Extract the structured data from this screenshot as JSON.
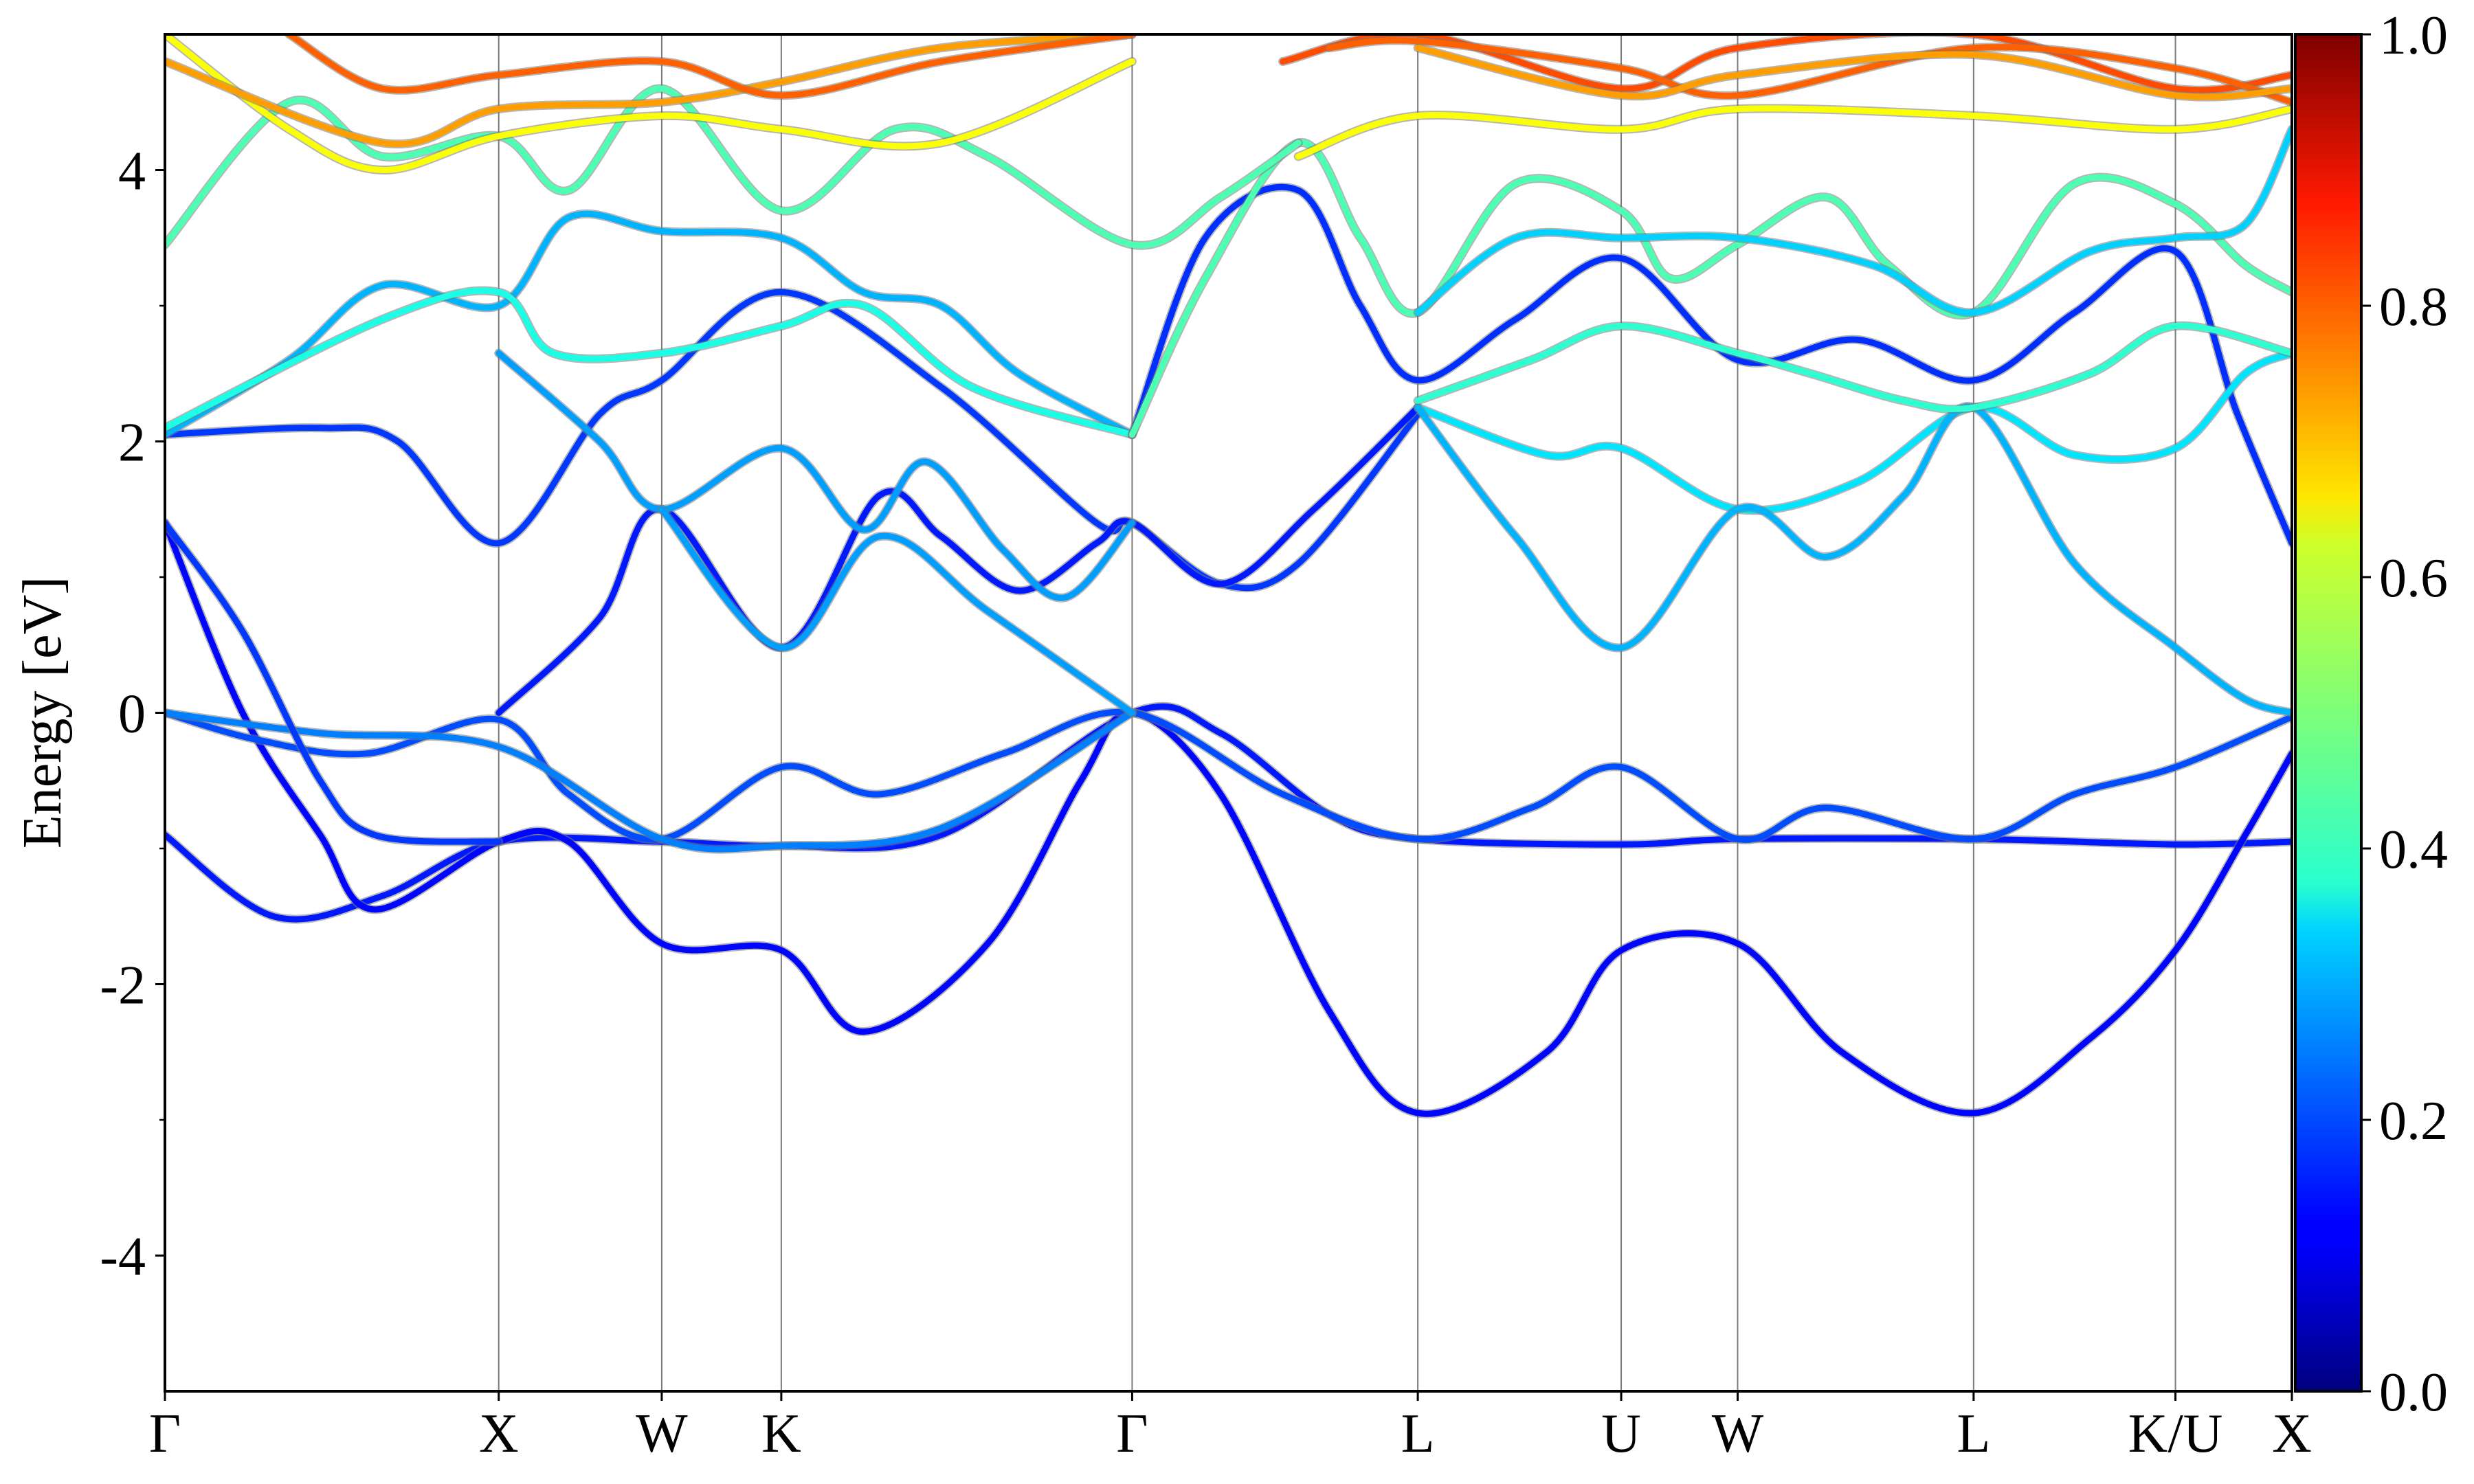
{
  "chart_data": {
    "type": "line",
    "title": "",
    "xlabel": "",
    "ylabel": "Energy [eV]",
    "ylim": [
      -5,
      5
    ],
    "yticks": [
      -4,
      -2,
      0,
      2,
      4
    ],
    "yticks_minor": [
      -3,
      -1,
      1,
      3
    ],
    "x_range": [
      0,
      13.7
    ],
    "kpath": [
      {
        "label": "Γ",
        "x": 0
      },
      {
        "label": "X",
        "x": 2.15
      },
      {
        "label": "W",
        "x": 3.2
      },
      {
        "label": "K",
        "x": 3.97
      },
      {
        "label": "Γ",
        "x": 6.23
      },
      {
        "label": "L",
        "x": 8.07
      },
      {
        "label": "U",
        "x": 9.38
      },
      {
        "label": "W",
        "x": 10.13
      },
      {
        "label": "L",
        "x": 11.65
      },
      {
        "label": "K/U",
        "x": 12.95
      },
      {
        "label": "X",
        "x": 13.7
      }
    ],
    "colorbar": {
      "colormap": "jet",
      "range": [
        0.0,
        1.0
      ],
      "ticks": [
        "0.0",
        "0.2",
        "0.4",
        "0.6",
        "0.8",
        "1.0"
      ]
    },
    "series": [
      {
        "c": 0.15,
        "points": [
          [
            0,
            -0.9
          ],
          [
            0.7,
            -1.5
          ],
          [
            1.4,
            -1.35
          ],
          [
            2.15,
            -0.95
          ],
          [
            3.2,
            -0.95
          ],
          [
            3.97,
            -0.98
          ],
          [
            5.0,
            -0.9
          ],
          [
            6.23,
            0.0
          ],
          [
            6.8,
            -0.15
          ],
          [
            7.5,
            -0.75
          ],
          [
            8.07,
            -0.93
          ],
          [
            9.38,
            -0.97
          ],
          [
            10.13,
            -0.93
          ],
          [
            11.65,
            -0.93
          ],
          [
            12.95,
            -0.97
          ],
          [
            13.7,
            -0.95
          ]
        ]
      },
      {
        "c": 0.13,
        "points": [
          [
            0,
            1.4
          ],
          [
            0.5,
            0.0
          ],
          [
            1.0,
            -0.9
          ],
          [
            1.35,
            -1.45
          ],
          [
            2.15,
            -0.95
          ],
          [
            2.6,
            -0.95
          ],
          [
            3.2,
            -1.7
          ],
          [
            3.97,
            -1.75
          ],
          [
            4.5,
            -2.35
          ],
          [
            5.3,
            -1.7
          ],
          [
            5.9,
            -0.5
          ],
          [
            6.23,
            0.0
          ],
          [
            6.8,
            -0.6
          ],
          [
            7.5,
            -2.2
          ],
          [
            8.07,
            -2.95
          ],
          [
            8.9,
            -2.5
          ],
          [
            9.38,
            -1.75
          ],
          [
            10.13,
            -1.7
          ],
          [
            10.8,
            -2.5
          ],
          [
            11.65,
            -2.95
          ],
          [
            12.4,
            -2.4
          ],
          [
            12.95,
            -1.75
          ],
          [
            13.4,
            -0.9
          ],
          [
            13.7,
            -0.3
          ]
        ]
      },
      {
        "c": 0.2,
        "points": [
          [
            0,
            0.0
          ],
          [
            0.6,
            -0.2
          ],
          [
            1.3,
            -0.3
          ],
          [
            2.15,
            -0.05
          ],
          [
            2.6,
            -0.6
          ],
          [
            3.2,
            -0.93
          ],
          [
            3.97,
            -0.4
          ],
          [
            4.6,
            -0.6
          ],
          [
            5.4,
            -0.3
          ],
          [
            6.23,
            0.0
          ],
          [
            7.2,
            -0.6
          ],
          [
            8.07,
            -0.93
          ],
          [
            8.8,
            -0.7
          ],
          [
            9.38,
            -0.4
          ],
          [
            10.13,
            -0.93
          ],
          [
            10.7,
            -0.7
          ],
          [
            11.65,
            -0.93
          ],
          [
            12.3,
            -0.6
          ],
          [
            12.95,
            -0.4
          ],
          [
            13.7,
            -0.03
          ]
        ]
      },
      {
        "c": 0.25,
        "points": [
          [
            0,
            0.0
          ],
          [
            1.0,
            -0.15
          ],
          [
            2.15,
            -0.25
          ],
          [
            3.2,
            -0.93
          ],
          [
            3.97,
            -0.98
          ],
          [
            5.0,
            -0.85
          ],
          [
            6.23,
            0.0
          ]
        ]
      },
      {
        "c": 0.18,
        "points": [
          [
            0,
            1.4
          ],
          [
            0.5,
            0.6
          ],
          [
            1.0,
            -0.5
          ],
          [
            1.35,
            -0.9
          ],
          [
            2.15,
            -0.95
          ]
        ]
      },
      {
        "c": 0.18,
        "points": [
          [
            0,
            2.05
          ],
          [
            1.0,
            2.1
          ],
          [
            1.5,
            2.0
          ],
          [
            2.15,
            1.25
          ],
          [
            2.8,
            2.2
          ],
          [
            3.2,
            2.45
          ],
          [
            3.97,
            3.1
          ],
          [
            5.0,
            2.4
          ],
          [
            6.0,
            1.4
          ],
          [
            6.23,
            1.4
          ],
          [
            6.8,
            0.95
          ],
          [
            7.3,
            1.1
          ],
          [
            8.07,
            2.2
          ]
        ]
      },
      {
        "c": 0.15,
        "points": [
          [
            2.15,
            0.0
          ],
          [
            2.8,
            0.7
          ],
          [
            3.2,
            1.5
          ],
          [
            3.97,
            0.48
          ],
          [
            4.6,
            1.6
          ],
          [
            5.0,
            1.3
          ],
          [
            5.5,
            0.9
          ],
          [
            6.0,
            1.25
          ],
          [
            6.23,
            1.4
          ],
          [
            6.8,
            0.95
          ],
          [
            7.4,
            1.5
          ],
          [
            8.07,
            2.25
          ]
        ]
      },
      {
        "c": 0.28,
        "points": [
          [
            2.15,
            2.65
          ],
          [
            2.8,
            2.0
          ],
          [
            3.2,
            1.5
          ],
          [
            3.97,
            1.95
          ],
          [
            4.5,
            1.35
          ],
          [
            4.9,
            1.85
          ],
          [
            5.4,
            1.2
          ],
          [
            5.8,
            0.85
          ],
          [
            6.23,
            1.4
          ]
        ]
      },
      {
        "c": 0.28,
        "points": [
          [
            3.2,
            1.5
          ],
          [
            3.97,
            0.48
          ],
          [
            4.6,
            1.3
          ],
          [
            5.3,
            0.75
          ],
          [
            6.23,
            0.0
          ]
        ]
      },
      {
        "c": 0.3,
        "points": [
          [
            0,
            2.05
          ],
          [
            0.8,
            2.6
          ],
          [
            1.4,
            3.15
          ],
          [
            2.15,
            3.0
          ],
          [
            2.6,
            3.65
          ],
          [
            3.2,
            3.55
          ],
          [
            3.97,
            3.5
          ],
          [
            4.5,
            3.1
          ],
          [
            5.0,
            3.0
          ],
          [
            5.5,
            2.5
          ],
          [
            6.23,
            2.05
          ]
        ]
      },
      {
        "c": 0.4,
        "points": [
          [
            0,
            2.1
          ],
          [
            1.4,
            2.9
          ],
          [
            2.15,
            3.1
          ],
          [
            2.5,
            2.65
          ],
          [
            3.2,
            2.65
          ],
          [
            3.97,
            2.85
          ],
          [
            4.5,
            3.0
          ],
          [
            5.2,
            2.4
          ],
          [
            6.23,
            2.05
          ]
        ]
      },
      {
        "c": 0.17,
        "points": [
          [
            6.23,
            2.05
          ],
          [
            6.7,
            3.5
          ],
          [
            7.3,
            3.85
          ],
          [
            7.7,
            3.0
          ],
          [
            8.07,
            2.45
          ],
          [
            8.7,
            2.9
          ],
          [
            9.38,
            3.35
          ],
          [
            10.13,
            2.6
          ],
          [
            10.9,
            2.75
          ],
          [
            11.65,
            2.45
          ],
          [
            12.3,
            2.95
          ],
          [
            12.95,
            3.4
          ],
          [
            13.35,
            2.2
          ],
          [
            13.7,
            1.25
          ]
        ]
      },
      {
        "c": 0.45,
        "points": [
          [
            6.23,
            2.05
          ],
          [
            6.7,
            3.2
          ],
          [
            7.3,
            4.2
          ],
          [
            7.7,
            3.5
          ],
          [
            8.07,
            2.95
          ],
          [
            8.7,
            3.9
          ],
          [
            9.38,
            3.7
          ],
          [
            9.7,
            3.2
          ],
          [
            10.13,
            3.45
          ],
          [
            10.7,
            3.8
          ],
          [
            11.1,
            3.3
          ],
          [
            11.65,
            2.95
          ],
          [
            12.3,
            3.9
          ],
          [
            12.95,
            3.75
          ],
          [
            13.4,
            3.3
          ],
          [
            13.7,
            3.1
          ]
        ]
      },
      {
        "c": 0.35,
        "points": [
          [
            8.07,
            2.25
          ],
          [
            8.9,
            1.9
          ],
          [
            9.38,
            1.95
          ],
          [
            10.13,
            1.5
          ],
          [
            10.9,
            1.7
          ],
          [
            11.65,
            2.25
          ],
          [
            12.3,
            1.9
          ],
          [
            12.95,
            1.95
          ],
          [
            13.4,
            2.5
          ],
          [
            13.7,
            2.65
          ]
        ]
      },
      {
        "c": 0.3,
        "points": [
          [
            8.07,
            2.25
          ],
          [
            8.7,
            1.3
          ],
          [
            9.38,
            0.48
          ],
          [
            10.13,
            1.5
          ],
          [
            10.7,
            1.15
          ],
          [
            11.2,
            1.6
          ],
          [
            11.65,
            2.25
          ],
          [
            12.3,
            1.1
          ],
          [
            12.95,
            0.48
          ],
          [
            13.4,
            0.1
          ],
          [
            13.7,
            0.0
          ]
        ]
      },
      {
        "c": 0.42,
        "points": [
          [
            8.07,
            2.3
          ],
          [
            8.8,
            2.6
          ],
          [
            9.38,
            2.85
          ],
          [
            10.13,
            2.65
          ],
          [
            10.6,
            2.5
          ],
          [
            11.2,
            2.3
          ],
          [
            11.65,
            2.25
          ],
          [
            12.4,
            2.5
          ],
          [
            12.95,
            2.85
          ],
          [
            13.7,
            2.65
          ]
        ]
      },
      {
        "c": 0.33,
        "points": [
          [
            8.07,
            2.95
          ],
          [
            8.7,
            3.5
          ],
          [
            9.38,
            3.5
          ],
          [
            10.13,
            3.5
          ],
          [
            11.0,
            3.3
          ],
          [
            11.65,
            2.95
          ],
          [
            12.4,
            3.4
          ],
          [
            12.95,
            3.5
          ],
          [
            13.4,
            3.6
          ],
          [
            13.7,
            4.3
          ]
        ]
      },
      {
        "c": 0.45,
        "points": [
          [
            0,
            3.45
          ],
          [
            0.8,
            4.5
          ],
          [
            1.4,
            4.1
          ],
          [
            2.15,
            4.25
          ],
          [
            2.6,
            3.85
          ],
          [
            3.2,
            4.6
          ],
          [
            3.97,
            3.7
          ],
          [
            4.7,
            4.3
          ],
          [
            5.3,
            4.1
          ],
          [
            6.23,
            3.45
          ],
          [
            6.8,
            3.8
          ],
          [
            7.3,
            4.2
          ]
        ]
      },
      {
        "c": 0.62,
        "points": [
          [
            0,
            5.0
          ],
          [
            0.8,
            4.3
          ],
          [
            1.4,
            4.0
          ],
          [
            2.15,
            4.25
          ],
          [
            3.2,
            4.4
          ],
          [
            3.97,
            4.3
          ],
          [
            5.0,
            4.2
          ],
          [
            6.23,
            4.8
          ]
        ]
      },
      {
        "c": 0.62,
        "points": [
          [
            7.3,
            4.1
          ],
          [
            8.07,
            4.4
          ],
          [
            9.38,
            4.3
          ],
          [
            10.13,
            4.45
          ],
          [
            11.65,
            4.4
          ],
          [
            12.95,
            4.3
          ],
          [
            13.7,
            4.45
          ]
        ]
      },
      {
        "c": 0.72,
        "points": [
          [
            0,
            4.8
          ],
          [
            1.4,
            4.2
          ],
          [
            2.15,
            4.45
          ],
          [
            3.2,
            4.5
          ],
          [
            3.97,
            4.65
          ],
          [
            5.0,
            4.9
          ],
          [
            6.23,
            5.0
          ]
        ]
      },
      {
        "c": 0.78,
        "points": [
          [
            0.8,
            5.0
          ],
          [
            1.4,
            4.6
          ],
          [
            2.15,
            4.7
          ],
          [
            3.2,
            4.8
          ],
          [
            3.97,
            4.55
          ],
          [
            5.0,
            4.8
          ],
          [
            6.23,
            5.0
          ]
        ]
      },
      {
        "c": 0.8,
        "points": [
          [
            7.2,
            4.8
          ],
          [
            8.07,
            5.0
          ],
          [
            9.38,
            4.6
          ],
          [
            10.13,
            4.9
          ],
          [
            11.65,
            5.0
          ],
          [
            12.95,
            4.6
          ],
          [
            13.7,
            4.7
          ]
        ]
      },
      {
        "c": 0.78,
        "points": [
          [
            7.5,
            4.9
          ],
          [
            8.07,
            4.95
          ],
          [
            9.38,
            4.75
          ],
          [
            10.13,
            4.55
          ],
          [
            11.65,
            4.9
          ],
          [
            12.95,
            4.75
          ],
          [
            13.7,
            4.5
          ]
        ]
      },
      {
        "c": 0.72,
        "points": [
          [
            8.07,
            4.9
          ],
          [
            9.38,
            4.55
          ],
          [
            10.13,
            4.7
          ],
          [
            11.65,
            4.85
          ],
          [
            12.95,
            4.55
          ],
          [
            13.7,
            4.6
          ]
        ]
      }
    ]
  }
}
